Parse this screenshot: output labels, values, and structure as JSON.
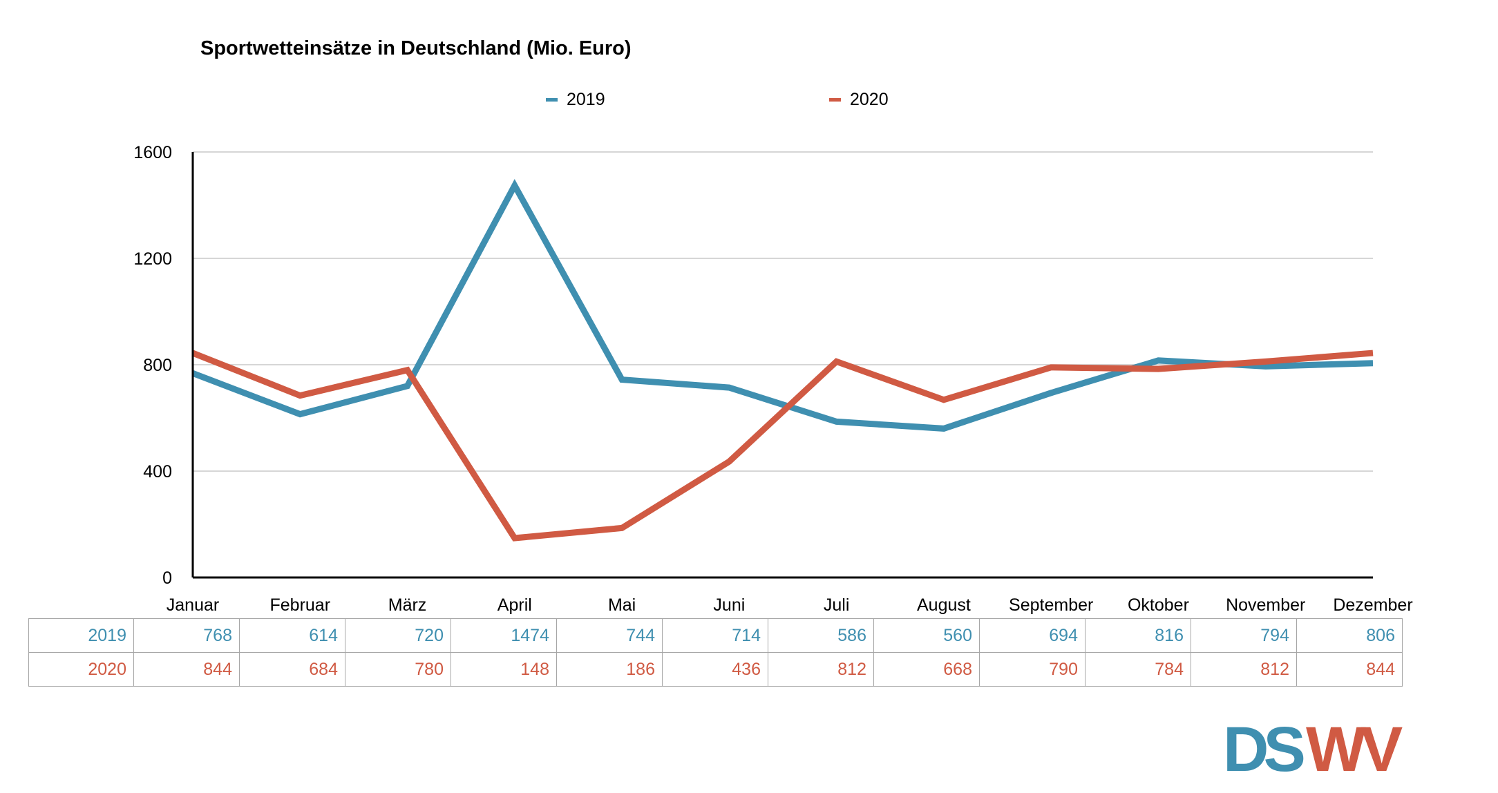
{
  "colors": {
    "series_2019": "#3f8fb0",
    "series_2020": "#d05a43",
    "grid": "#c8c8c8",
    "axis": "#000000"
  },
  "logo": {
    "text_blue": "DS",
    "text_red": "WV"
  },
  "chart_data": {
    "type": "line",
    "title": "Sportwetteinsätze in Deutschland (Mio. Euro)",
    "xlabel": "",
    "ylabel": "",
    "categories": [
      "Januar",
      "Februar",
      "März",
      "April",
      "Mai",
      "Juni",
      "Juli",
      "August",
      "September",
      "Oktober",
      "November",
      "Dezember"
    ],
    "ylim": [
      0,
      1600
    ],
    "yticks": [
      0,
      400,
      800,
      1200,
      1600
    ],
    "grid": true,
    "legend_position": "top",
    "series": [
      {
        "name": "2019",
        "color": "#3f8fb0",
        "values": [
          768,
          614,
          720,
          1474,
          744,
          714,
          586,
          560,
          694,
          816,
          794,
          806
        ]
      },
      {
        "name": "2020",
        "color": "#d05a43",
        "values": [
          844,
          684,
          780,
          148,
          186,
          436,
          812,
          668,
          790,
          784,
          812,
          844
        ]
      }
    ],
    "table": {
      "rows": [
        {
          "label": "2019",
          "values": [
            "768",
            "614",
            "720",
            "1474",
            "744",
            "714",
            "586",
            "560",
            "694",
            "816",
            "794",
            "806"
          ]
        },
        {
          "label": "2020",
          "values": [
            "844",
            "684",
            "780",
            "148",
            "186",
            "436",
            "812",
            "668",
            "790",
            "784",
            "812",
            "844"
          ]
        }
      ]
    }
  }
}
